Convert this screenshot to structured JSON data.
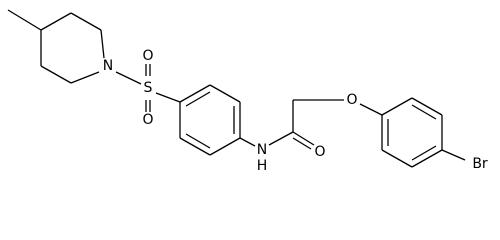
{
  "labels": [
    "N",
    "S",
    "O",
    "O",
    "N",
    "H",
    "O",
    "O",
    "Br"
  ]
}
